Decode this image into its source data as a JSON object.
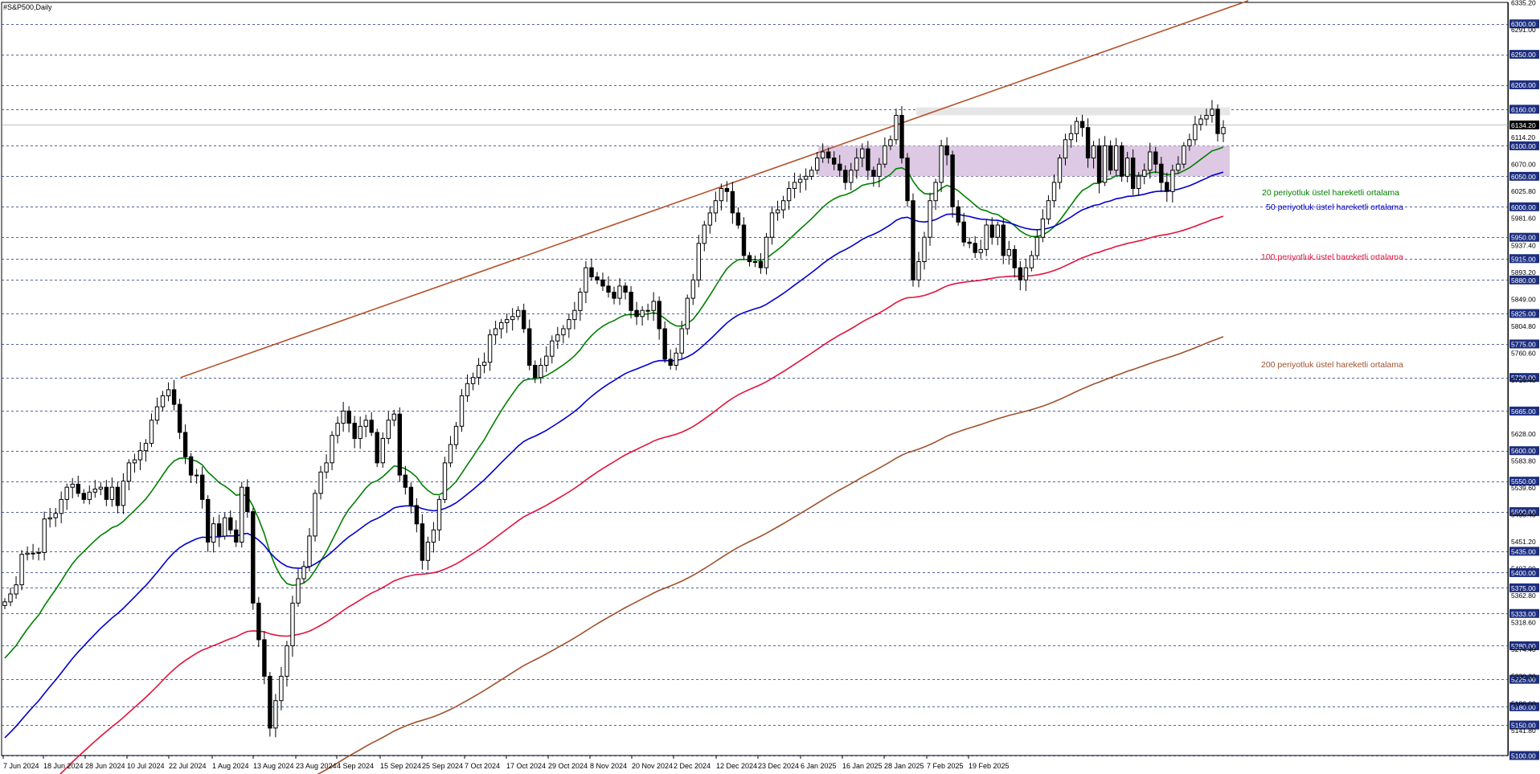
{
  "window": {
    "title": "#S&P500,Daily"
  },
  "legend": [
    {
      "text": "20 periyotluk üstel hareketli ortalama",
      "color": "#008000"
    },
    {
      "text": "50 periyotluk üstel hareketli ortalama",
      "color": "#0000cc"
    },
    {
      "text": "100 periyotluk üstel hareketli ortalama",
      "color": "#e0143c"
    },
    {
      "text": "200 periyotluk üstel hareketli ortalama",
      "color": "#a0522d"
    }
  ],
  "chart_data": {
    "type": "candlestick",
    "symbol": "#S&P500",
    "timeframe": "Daily",
    "ylim": [
      5100,
      6335.2
    ],
    "current_price": "6134.20",
    "price_labels": [
      "6335.20",
      "6300.00",
      "6291.00",
      "6250.00",
      "6200.00",
      "6160.00",
      "6134.20",
      "6114.20",
      "6100.00",
      "6070.00",
      "6050.00",
      "6025.80",
      "6000.00",
      "5981.60",
      "5950.00",
      "5937.40",
      "5915.00",
      "5893.20",
      "5880.00",
      "5849.00",
      "5825.00",
      "5804.80",
      "5775.00",
      "5760.60",
      "5720.00",
      "5716.40",
      "5665.00",
      "5628.00",
      "5600.00",
      "5583.80",
      "5550.00",
      "5539.60",
      "5500.00",
      "5495.40",
      "5451.20",
      "5435.00",
      "5407.00",
      "5400.00",
      "5375.00",
      "5362.80",
      "5333.00",
      "5318.60",
      "5280.00",
      "5274.40",
      "5225.00",
      "5230.20",
      "5180.00",
      "5186.00",
      "5150.00",
      "5141.80",
      "5100.00"
    ],
    "highlighted_levels": [
      "6300.00",
      "6250.00",
      "6200.00",
      "6160.00",
      "6100.00",
      "6050.00",
      "6000.00",
      "5950.00",
      "5915.00",
      "5880.00",
      "5825.00",
      "5775.00",
      "5720.00",
      "5665.00",
      "5600.00",
      "5550.00",
      "5500.00",
      "5435.00",
      "5400.00",
      "5375.00",
      "5333.00",
      "5280.00",
      "5225.00",
      "5180.00",
      "5150.00",
      "5100.00"
    ],
    "x_labels": [
      "7 Jun 2024",
      "18 Jun 2024",
      "28 Jun 2024",
      "10 Jul 2024",
      "22 Jul 2024",
      "1 Aug 2024",
      "13 Aug 2024",
      "23 Aug 2024",
      "4 Sep 2024",
      "15 Sep 2024",
      "25 Sep 2024",
      "7 Oct 2024",
      "17 Oct 2024",
      "29 Oct 2024",
      "8 Nov 2024",
      "20 Nov 2024",
      "2 Dec 2024",
      "12 Dec 2024",
      "23 Dec 2024",
      "6 Jan 2025",
      "16 Jan 2025",
      "28 Jan 2025",
      "7 Feb 2025",
      "19 Feb 2025"
    ],
    "close_series": [
      5352,
      5365,
      5380,
      5430,
      5432,
      5432,
      5433,
      5488,
      5490,
      5497,
      5520,
      5540,
      5545,
      5530,
      5520,
      5532,
      5537,
      5540,
      5520,
      5540,
      5510,
      5550,
      5580,
      5585,
      5600,
      5612,
      5650,
      5672,
      5690,
      5700,
      5676,
      5630,
      5590,
      5560,
      5560,
      5520,
      5450,
      5480,
      5460,
      5490,
      5470,
      5450,
      5540,
      5500,
      5350,
      5290,
      5230,
      5145,
      5190,
      5230,
      5280,
      5350,
      5390,
      5410,
      5460,
      5530,
      5565,
      5580,
      5625,
      5645,
      5665,
      5645,
      5620,
      5640,
      5650,
      5630,
      5580,
      5620,
      5650,
      5660,
      5560,
      5540,
      5510,
      5480,
      5420,
      5450,
      5470,
      5520,
      5580,
      5610,
      5640,
      5690,
      5710,
      5720,
      5740,
      5745,
      5790,
      5800,
      5810,
      5815,
      5820,
      5830,
      5800,
      5740,
      5720,
      5740,
      5755,
      5780,
      5790,
      5800,
      5815,
      5830,
      5860,
      5900,
      5885,
      5880,
      5870,
      5860,
      5850,
      5870,
      5860,
      5830,
      5820,
      5830,
      5830,
      5845,
      5800,
      5750,
      5740,
      5760,
      5800,
      5850,
      5880,
      5940,
      5970,
      5990,
      6010,
      6030,
      6025,
      5990,
      5970,
      5920,
      5910,
      5910,
      5900,
      5950,
      5990,
      5995,
      6010,
      6030,
      6040,
      6045,
      6050,
      6060,
      6080,
      6090,
      6080,
      6070,
      6060,
      6040,
      6060,
      6080,
      6095,
      6060,
      6050,
      6070,
      6100,
      6110,
      6150,
      6080,
      6010,
      5880,
      5910,
      5950,
      6010,
      6040,
      6100,
      6085,
      6000,
      5975,
      5942,
      5940,
      5925,
      5930,
      5970,
      5950,
      5970,
      5920,
      5930,
      5900,
      5880,
      5900,
      5920,
      5950,
      5980,
      6010,
      6040,
      6080,
      6110,
      6120,
      6140,
      6130,
      6080,
      6100,
      6040,
      6100,
      6060,
      6100,
      6050,
      6080,
      6030,
      6050,
      6060,
      6090,
      6070,
      6040,
      6025,
      6060,
      6070,
      6100,
      6110,
      6135,
      6144,
      6150,
      6160,
      6120,
      6130
    ]
  }
}
